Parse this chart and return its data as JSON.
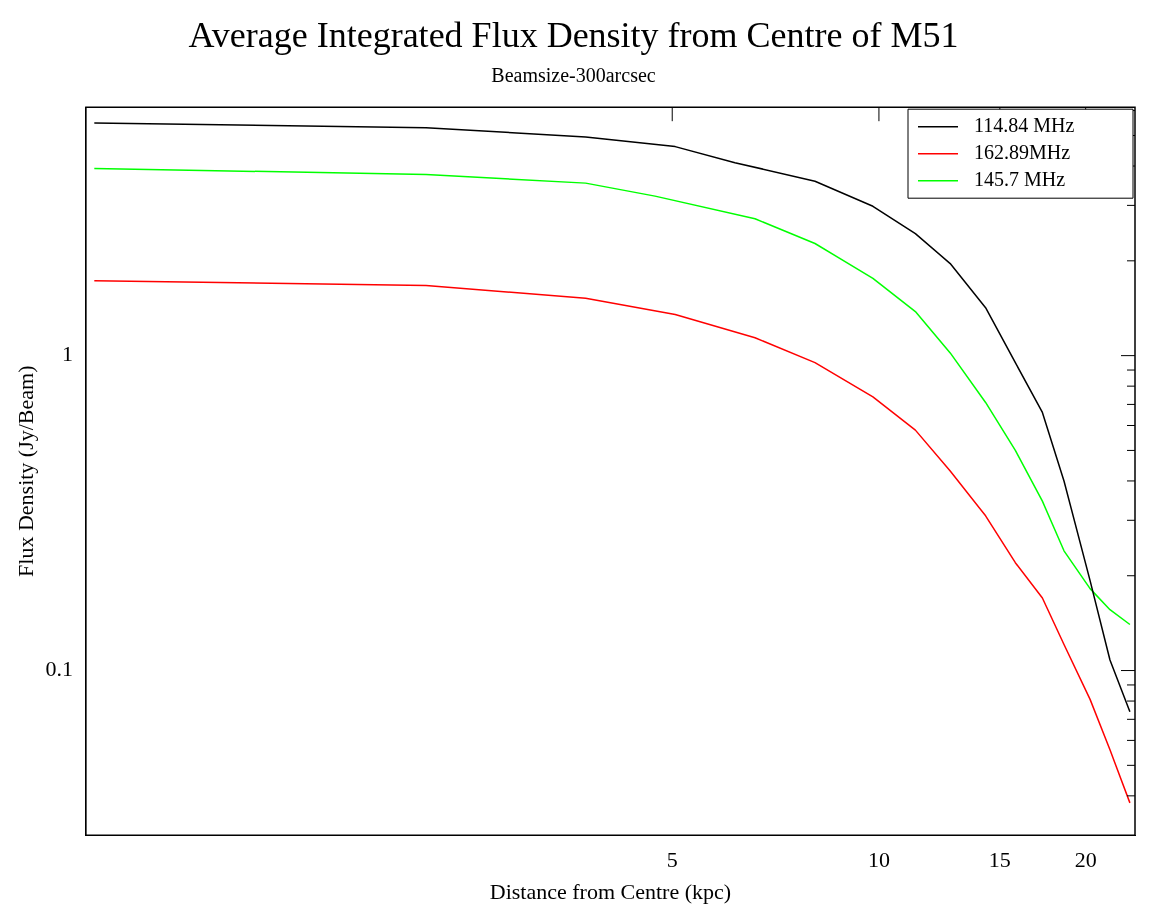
{
  "chart_data": {
    "type": "line",
    "title": "Average Integrated Flux Density from Centre of M51",
    "subtitle": "Beamsize-300arcsec",
    "xlabel": "Distance from Centre (kpc)",
    "ylabel": "Flux Density (Jy/Beam)",
    "log": "xy",
    "grid": false,
    "legend": "top right",
    "marker": "none",
    "line_style": "solid",
    "xlim": [
      0.72,
      23.6
    ],
    "xticks": [
      5,
      10,
      15,
      20
    ],
    "ylim": [
      0.03,
      6.15
    ],
    "yticks": [
      {
        "value": 0.04,
        "label": null
      },
      {
        "value": 0.05,
        "label": null
      },
      {
        "value": 0.06,
        "label": null
      },
      {
        "value": 0.07,
        "label": null
      },
      {
        "value": 0.08,
        "label": null
      },
      {
        "value": 0.09,
        "label": null
      },
      0.1,
      {
        "value": 0.2,
        "label": null
      },
      {
        "value": 0.3,
        "label": null
      },
      {
        "value": 0.4,
        "label": null
      },
      {
        "value": 0.5,
        "label": null
      },
      {
        "value": 0.6,
        "label": null
      },
      {
        "value": 0.7,
        "label": null
      },
      {
        "value": 0.8,
        "label": null
      },
      {
        "value": 0.9,
        "label": null
      },
      1,
      {
        "value": 2,
        "label": null
      },
      {
        "value": 3,
        "label": null
      },
      {
        "value": 4,
        "label": null
      },
      {
        "value": 5,
        "label": null
      },
      {
        "value": 6,
        "label": null
      }
    ],
    "x": [
      0.72,
      2.19,
      3.74,
      5.05,
      6.17,
      8.07,
      9.8,
      11.3,
      12.7,
      14.3,
      15.8,
      17.3,
      18.6,
      20.3,
      21.7,
      23.2
    ],
    "series": [
      {
        "name": "114.84 MHz",
        "color": "#000000",
        "values": [
          5.48,
          5.29,
          4.95,
          4.61,
          4.1,
          3.58,
          2.98,
          2.44,
          1.96,
          1.42,
          0.95,
          0.66,
          0.4,
          0.193,
          0.108,
          0.074
        ]
      },
      {
        "name": "162.89MHz",
        "color": "#ff0000",
        "x": [
          0.72,
          2.19,
          3.74,
          5.05,
          6.6,
          8.07,
          9.8,
          11.3,
          12.7,
          14.3,
          15.8,
          17.3,
          18.6,
          20.3,
          21.7,
          23.2
        ],
        "values": [
          1.73,
          1.67,
          1.52,
          1.35,
          1.14,
          0.95,
          0.74,
          0.58,
          0.43,
          0.31,
          0.22,
          0.17,
          0.121,
          0.081,
          0.056,
          0.038
        ]
      },
      {
        "name": "145.7 MHz",
        "color": "#00ff00",
        "x": [
          0.72,
          2.19,
          3.74,
          4.72,
          6.6,
          8.07,
          9.8,
          11.3,
          12.7,
          14.3,
          15.8,
          17.3,
          18.6,
          20.3,
          21.7,
          23.2
        ],
        "values": [
          3.93,
          3.76,
          3.53,
          3.21,
          2.72,
          2.27,
          1.76,
          1.38,
          1.02,
          0.71,
          0.5,
          0.345,
          0.24,
          0.182,
          0.156,
          0.14
        ]
      }
    ]
  }
}
